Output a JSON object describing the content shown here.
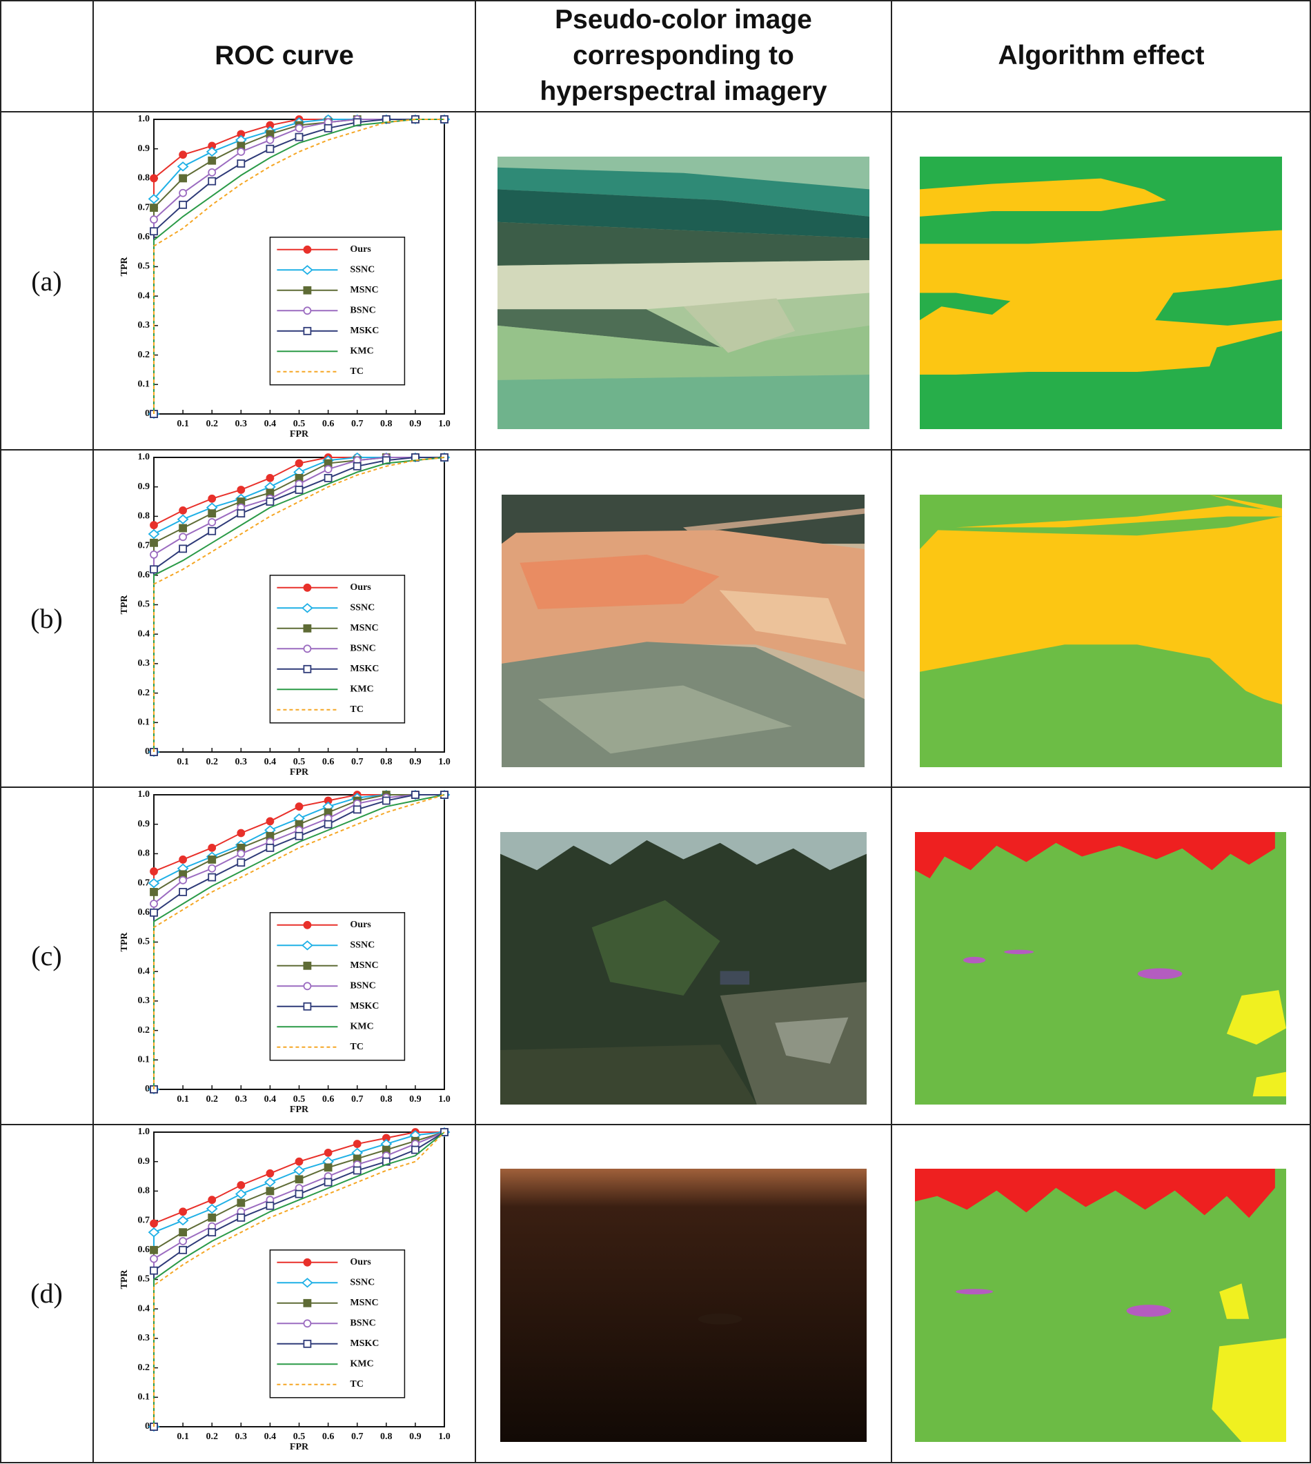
{
  "table": {
    "header": [
      "ROC curve",
      "Pseudo-color image corresponding to hyperspectral imagery",
      "Algorithm effect"
    ],
    "rows": [
      "(a)",
      "(b)",
      "(c)",
      "(d)"
    ]
  },
  "chart_data": [
    {
      "type": "line",
      "xlabel": "FPR",
      "ylabel": "TPR",
      "legend": "lower right",
      "x": [
        0,
        0,
        0.1,
        0.2,
        0.3,
        0.4,
        0.5,
        0.6,
        0.7,
        0.8,
        0.9,
        1
      ],
      "xlim": [
        0,
        1
      ],
      "ylim": [
        0,
        1
      ],
      "xticks": [
        0.1,
        0.2,
        0.3,
        0.4,
        0.5,
        0.6,
        0.7,
        0.8,
        0.9,
        {
          "value": 1,
          "label": "1.0"
        }
      ],
      "yticks": [
        0,
        0.1,
        0.2,
        0.3,
        0.4,
        0.5,
        0.6,
        0.7,
        0.8,
        0.9,
        {
          "value": 1,
          "label": "1.0"
        }
      ],
      "series": [
        {
          "name": "Ours",
          "color": "#e8302a",
          "marker": "filled-circle",
          "values": [
            0,
            0.8,
            0.88,
            0.91,
            0.95,
            0.98,
            1.0,
            1.0,
            1.0,
            1.0,
            1.0,
            1.0
          ]
        },
        {
          "name": "SSNC",
          "color": "#1fb0e6",
          "marker": "open-diamond",
          "values": [
            0,
            0.73,
            0.84,
            0.89,
            0.93,
            0.96,
            0.99,
            1.0,
            1.0,
            1.0,
            1.0,
            1.0
          ]
        },
        {
          "name": "MSNC",
          "color": "#5e6b35",
          "marker": "filled-square",
          "values": [
            0,
            0.7,
            0.8,
            0.86,
            0.91,
            0.95,
            0.98,
            0.99,
            1.0,
            1.0,
            1.0,
            1.0
          ]
        },
        {
          "name": "BSNC",
          "color": "#9b6bc0",
          "marker": "open-circle",
          "values": [
            0,
            0.66,
            0.75,
            0.82,
            0.89,
            0.93,
            0.97,
            0.99,
            1.0,
            1.0,
            1.0,
            1.0
          ]
        },
        {
          "name": "MSKC",
          "color": "#2e3a78",
          "marker": "open-square",
          "values": [
            0,
            0.62,
            0.71,
            0.79,
            0.85,
            0.9,
            0.94,
            0.97,
            0.99,
            1.0,
            1.0,
            1.0
          ]
        },
        {
          "name": "KMC",
          "color": "#2a9a47",
          "values": [
            0,
            0.59,
            0.67,
            0.74,
            0.81,
            0.87,
            0.92,
            0.95,
            0.98,
            0.99,
            1.0,
            1.0
          ]
        },
        {
          "name": "TC",
          "color": "#f5a623",
          "dash": true,
          "values": [
            0,
            0.57,
            0.63,
            0.71,
            0.78,
            0.84,
            0.89,
            0.93,
            0.96,
            0.99,
            1.0,
            1.0
          ]
        }
      ]
    },
    {
      "type": "line",
      "xlabel": "FPR",
      "ylabel": "TPR",
      "legend": "lower right",
      "x": [
        0,
        0,
        0.1,
        0.2,
        0.3,
        0.4,
        0.5,
        0.6,
        0.7,
        0.8,
        0.9,
        1
      ],
      "xlim": [
        0,
        1
      ],
      "ylim": [
        0,
        1
      ],
      "xticks": [
        0.1,
        0.2,
        0.3,
        0.4,
        0.5,
        0.6,
        0.7,
        0.8,
        0.9,
        {
          "value": 1,
          "label": "1.0"
        }
      ],
      "yticks": [
        0,
        0.1,
        0.2,
        0.3,
        0.4,
        0.5,
        0.6,
        0.7,
        0.8,
        0.9,
        {
          "value": 1,
          "label": "1.0"
        }
      ],
      "series": [
        {
          "name": "Ours",
          "color": "#e8302a",
          "marker": "filled-circle",
          "values": [
            0,
            0.77,
            0.82,
            0.86,
            0.89,
            0.93,
            0.98,
            1.0,
            1.0,
            1.0,
            1.0,
            1.0
          ]
        },
        {
          "name": "SSNC",
          "color": "#1fb0e6",
          "marker": "open-diamond",
          "values": [
            0,
            0.74,
            0.79,
            0.83,
            0.86,
            0.9,
            0.95,
            0.99,
            1.0,
            1.0,
            1.0,
            1.0
          ]
        },
        {
          "name": "MSNC",
          "color": "#5e6b35",
          "marker": "filled-square",
          "values": [
            0,
            0.71,
            0.76,
            0.81,
            0.85,
            0.88,
            0.93,
            0.98,
            0.99,
            1.0,
            1.0,
            1.0
          ]
        },
        {
          "name": "BSNC",
          "color": "#9b6bc0",
          "marker": "open-circle",
          "values": [
            0,
            0.67,
            0.73,
            0.78,
            0.83,
            0.86,
            0.91,
            0.96,
            0.99,
            1.0,
            1.0,
            1.0
          ]
        },
        {
          "name": "MSKC",
          "color": "#2e3a78",
          "marker": "open-square",
          "values": [
            0,
            0.62,
            0.69,
            0.75,
            0.81,
            0.85,
            0.89,
            0.93,
            0.97,
            0.99,
            1.0,
            1.0
          ]
        },
        {
          "name": "KMC",
          "color": "#2a9a47",
          "values": [
            0,
            0.6,
            0.65,
            0.71,
            0.77,
            0.83,
            0.87,
            0.91,
            0.95,
            0.98,
            0.99,
            1.0
          ]
        },
        {
          "name": "TC",
          "color": "#f5a623",
          "dash": true,
          "values": [
            0,
            0.57,
            0.62,
            0.68,
            0.74,
            0.8,
            0.85,
            0.9,
            0.94,
            0.97,
            0.99,
            1.0
          ]
        }
      ]
    },
    {
      "type": "line",
      "xlabel": "FPR",
      "ylabel": "TPR",
      "legend": "lower right",
      "x": [
        0,
        0,
        0.1,
        0.2,
        0.3,
        0.4,
        0.5,
        0.6,
        0.7,
        0.8,
        0.9,
        1
      ],
      "xlim": [
        0,
        1
      ],
      "ylim": [
        0,
        1
      ],
      "xticks": [
        0.1,
        0.2,
        0.3,
        0.4,
        0.5,
        0.6,
        0.7,
        0.8,
        0.9,
        {
          "value": 1,
          "label": "1.0"
        }
      ],
      "yticks": [
        0,
        0.1,
        0.2,
        0.3,
        0.4,
        0.5,
        0.6,
        0.7,
        0.8,
        0.9,
        {
          "value": 1,
          "label": "1.0"
        }
      ],
      "series": [
        {
          "name": "Ours",
          "color": "#e8302a",
          "marker": "filled-circle",
          "values": [
            0,
            0.74,
            0.78,
            0.82,
            0.87,
            0.91,
            0.96,
            0.98,
            1.0,
            1.0,
            1.0,
            1.0
          ]
        },
        {
          "name": "SSNC",
          "color": "#1fb0e6",
          "marker": "open-diamond",
          "values": [
            0,
            0.7,
            0.75,
            0.79,
            0.83,
            0.88,
            0.92,
            0.96,
            0.99,
            1.0,
            1.0,
            1.0
          ]
        },
        {
          "name": "MSNC",
          "color": "#5e6b35",
          "marker": "filled-square",
          "values": [
            0,
            0.67,
            0.73,
            0.78,
            0.82,
            0.86,
            0.9,
            0.94,
            0.98,
            1.0,
            1.0,
            1.0
          ]
        },
        {
          "name": "BSNC",
          "color": "#9b6bc0",
          "marker": "open-circle",
          "values": [
            0,
            0.63,
            0.71,
            0.75,
            0.8,
            0.84,
            0.88,
            0.92,
            0.97,
            0.99,
            1.0,
            1.0
          ]
        },
        {
          "name": "MSKC",
          "color": "#2e3a78",
          "marker": "open-square",
          "values": [
            0,
            0.6,
            0.67,
            0.72,
            0.77,
            0.82,
            0.86,
            0.9,
            0.95,
            0.98,
            1.0,
            1.0
          ]
        },
        {
          "name": "KMC",
          "color": "#2a9a47",
          "values": [
            0,
            0.57,
            0.63,
            0.69,
            0.74,
            0.79,
            0.84,
            0.88,
            0.92,
            0.96,
            0.98,
            1.0
          ]
        },
        {
          "name": "TC",
          "color": "#f5a623",
          "dash": true,
          "values": [
            0,
            0.55,
            0.61,
            0.67,
            0.72,
            0.77,
            0.82,
            0.86,
            0.9,
            0.94,
            0.97,
            1.0
          ]
        }
      ]
    },
    {
      "type": "line",
      "xlabel": "FPR",
      "ylabel": "TPR",
      "legend": "lower right",
      "x": [
        0,
        0,
        0.1,
        0.2,
        0.3,
        0.4,
        0.5,
        0.6,
        0.7,
        0.8,
        0.9,
        1
      ],
      "xlim": [
        0,
        1
      ],
      "ylim": [
        0,
        1
      ],
      "xticks": [
        0.1,
        0.2,
        0.3,
        0.4,
        0.5,
        0.6,
        0.7,
        0.8,
        0.9,
        {
          "value": 1,
          "label": "1.0"
        }
      ],
      "yticks": [
        0,
        0.1,
        0.2,
        0.3,
        0.4,
        0.5,
        0.6,
        0.7,
        0.8,
        0.9,
        {
          "value": 1,
          "label": "1.0"
        }
      ],
      "series": [
        {
          "name": "Ours",
          "color": "#e8302a",
          "marker": "filled-circle",
          "values": [
            0,
            0.69,
            0.73,
            0.77,
            0.82,
            0.86,
            0.9,
            0.93,
            0.96,
            0.98,
            1.0,
            1.0
          ]
        },
        {
          "name": "SSNC",
          "color": "#1fb0e6",
          "marker": "open-diamond",
          "values": [
            0,
            0.66,
            0.7,
            0.74,
            0.79,
            0.83,
            0.87,
            0.9,
            0.93,
            0.96,
            0.99,
            1.0
          ]
        },
        {
          "name": "MSNC",
          "color": "#5e6b35",
          "marker": "filled-square",
          "values": [
            0,
            0.6,
            0.66,
            0.71,
            0.76,
            0.8,
            0.84,
            0.88,
            0.91,
            0.94,
            0.97,
            1.0
          ]
        },
        {
          "name": "BSNC",
          "color": "#9b6bc0",
          "marker": "open-circle",
          "values": [
            0,
            0.57,
            0.63,
            0.68,
            0.73,
            0.77,
            0.81,
            0.85,
            0.89,
            0.92,
            0.96,
            1.0
          ]
        },
        {
          "name": "MSKC",
          "color": "#2e3a78",
          "marker": "open-square",
          "values": [
            0,
            0.53,
            0.6,
            0.66,
            0.71,
            0.75,
            0.79,
            0.83,
            0.87,
            0.9,
            0.94,
            1.0
          ]
        },
        {
          "name": "KMC",
          "color": "#2a9a47",
          "values": [
            0,
            0.5,
            0.57,
            0.63,
            0.68,
            0.73,
            0.77,
            0.81,
            0.85,
            0.89,
            0.92,
            1.0
          ]
        },
        {
          "name": "TC",
          "color": "#f5a623",
          "dash": true,
          "values": [
            0,
            0.48,
            0.55,
            0.61,
            0.66,
            0.71,
            0.75,
            0.79,
            0.83,
            0.87,
            0.9,
            1.0
          ]
        }
      ]
    }
  ]
}
